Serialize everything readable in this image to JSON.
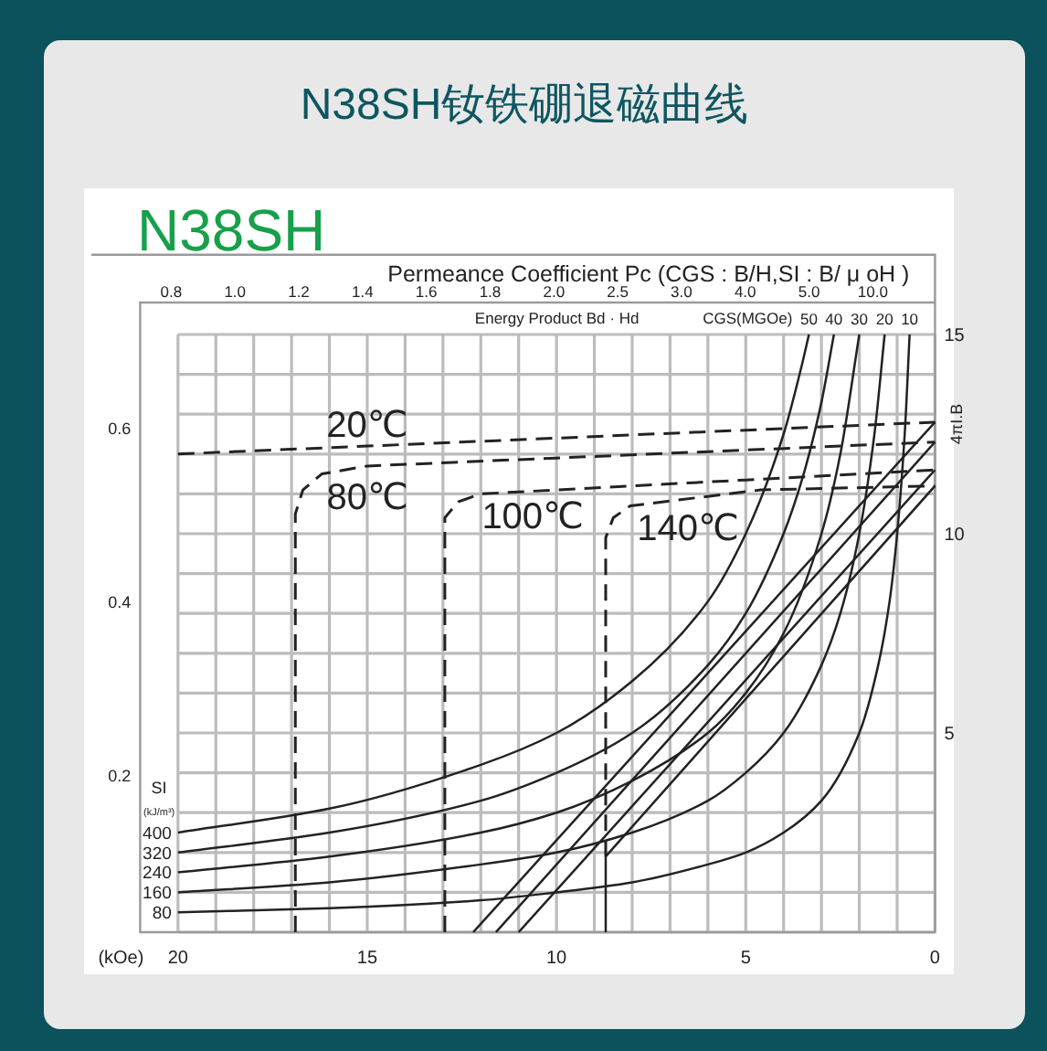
{
  "chart_data": {
    "type": "line",
    "title": "N38SH钕铁硼退磁曲线",
    "subtitle": "N38SH",
    "xlabel": "(kOe)",
    "ylabel": "4πI.B",
    "xlim": [
      21,
      0
    ],
    "xticks": [
      20,
      {
        "value": 19,
        "label": null
      },
      {
        "value": 18,
        "label": null
      },
      {
        "value": 17,
        "label": null
      },
      {
        "value": 16,
        "label": null
      },
      15,
      {
        "value": 14,
        "label": null
      },
      {
        "value": 13,
        "label": null
      },
      {
        "value": 12,
        "label": null
      },
      {
        "value": 11,
        "label": null
      },
      10,
      {
        "value": 9,
        "label": null
      },
      {
        "value": 8,
        "label": null
      },
      {
        "value": 7,
        "label": null
      },
      {
        "value": 6,
        "label": null
      },
      5,
      {
        "value": 4,
        "label": null
      },
      {
        "value": 3,
        "label": null
      },
      {
        "value": 2,
        "label": null
      },
      {
        "value": 1,
        "label": null
      },
      0
    ],
    "ylim": [
      0,
      17.0
    ],
    "yticks": [
      {
        "value": 0,
        "label": null
      },
      {
        "value": 1,
        "label": null
      },
      {
        "value": 2,
        "label": null
      },
      {
        "value": 3,
        "label": null
      },
      {
        "value": 4,
        "label": null
      },
      5,
      {
        "value": 6,
        "label": null
      },
      {
        "value": 7,
        "label": null
      },
      {
        "value": 8,
        "label": null
      },
      {
        "value": 9,
        "label": null
      },
      10,
      {
        "value": 11,
        "label": null
      },
      {
        "value": 12,
        "label": null
      },
      {
        "value": 13,
        "label": null
      },
      {
        "value": 14,
        "label": null
      },
      15
    ],
    "y2lim": [
      0.02,
      0.8
    ],
    "y2ticks": [
      0.2,
      0.4,
      0.6
    ],
    "grid": true,
    "annotations": [
      "Permeance Coefficient Pc (CGS : B/H,SI : B/ μ oH )",
      "Energy Product Bd · Hd",
      "CGS(MGOe)",
      "SI",
      "(kJ/m³)",
      "400",
      "320",
      "240",
      "160",
      "80",
      "0.8",
      "1.0",
      "1.2",
      "1.4",
      "1.6",
      "1.8",
      "2.0",
      "2.5",
      "3.0",
      "4.0",
      "5.0",
      "10.0"
    ],
    "series": [
      {
        "name": "20℃",
        "color": "#222222",
        "line_style": "dashed",
        "x": [
          20,
          15,
          10,
          5,
          0
        ],
        "values": [
          12.0,
          12.2,
          12.4,
          12.6,
          12.8
        ]
      },
      {
        "name": "80℃",
        "color": "#222222",
        "line_style": "dashed",
        "x": [
          16.9,
          16.9,
          16.7,
          16.2,
          15,
          10,
          5,
          0
        ],
        "values": [
          0,
          10.5,
          11.1,
          11.5,
          11.7,
          11.9,
          12.1,
          12.3
        ]
      },
      {
        "name": "100℃",
        "color": "#222222",
        "line_style": "dashed",
        "x": [
          12.95,
          12.95,
          12.6,
          12.0,
          10,
          5,
          0
        ],
        "values": [
          0,
          10.4,
          10.8,
          11.0,
          11.1,
          11.35,
          11.6
        ]
      },
      {
        "name": "140℃",
        "color": "#222222",
        "line_style": "dashed",
        "x": [
          8.7,
          8.7,
          8.5,
          8.05,
          4.6,
          0
        ],
        "values": [
          1.9,
          9.9,
          10.4,
          10.7,
          11.1,
          11.2
        ]
      },
      {
        "color": "#222222",
        "line_style": "solid",
        "x": [
          0,
          12.2
        ],
        "values": [
          12.8,
          0
        ]
      },
      {
        "color": "#222222",
        "line_style": "solid",
        "x": [
          0,
          11.6
        ],
        "values": [
          12.3,
          0
        ]
      },
      {
        "color": "#222222",
        "line_style": "solid",
        "x": [
          0,
          11.0
        ],
        "values": [
          11.6,
          0
        ]
      },
      {
        "color": "#222222",
        "line_style": "solid",
        "x": [
          0,
          8.7,
          8.7
        ],
        "values": [
          11.2,
          1.9,
          0
        ]
      },
      {
        "name": "50",
        "color": "#222222",
        "line_style": "solid",
        "x": [
          20,
          16,
          12,
          10,
          8,
          6,
          5,
          4,
          3.5,
          3.33
        ],
        "values": [
          2.5,
          3.1,
          4.2,
          5.0,
          6.3,
          8.3,
          10.0,
          12.5,
          14.3,
          15.0
        ]
      },
      {
        "name": "40",
        "color": "#222222",
        "line_style": "solid",
        "x": [
          20,
          16,
          12,
          10,
          8,
          6,
          5,
          4,
          3.5,
          3,
          2.67
        ],
        "values": [
          2.0,
          2.5,
          3.3,
          4.0,
          5.0,
          6.7,
          8.0,
          10.0,
          11.4,
          13.3,
          15.0
        ]
      },
      {
        "name": "30",
        "color": "#222222",
        "line_style": "solid",
        "x": [
          20,
          16,
          12,
          10,
          8,
          6,
          5,
          4,
          3,
          2.5,
          2
        ],
        "values": [
          1.5,
          1.9,
          2.5,
          3.0,
          3.8,
          5.0,
          6.0,
          7.5,
          10.0,
          12.0,
          15.0
        ]
      },
      {
        "name": "20",
        "color": "#222222",
        "line_style": "solid",
        "x": [
          20,
          16,
          12,
          10,
          8,
          6,
          5,
          4,
          3,
          2.5,
          2,
          1.6,
          1.33
        ],
        "values": [
          1.0,
          1.25,
          1.7,
          2.0,
          2.5,
          3.3,
          4.0,
          5.0,
          6.7,
          8.0,
          10.0,
          12.5,
          15.0
        ]
      },
      {
        "name": "10",
        "color": "#222222",
        "line_style": "solid",
        "x": [
          20,
          16,
          12,
          10,
          8,
          6,
          5,
          4,
          3,
          2,
          1.5,
          1.2,
          1,
          0.8,
          0.67
        ],
        "values": [
          0.5,
          0.6,
          0.8,
          1.0,
          1.25,
          1.7,
          2.0,
          2.5,
          3.3,
          5.0,
          6.7,
          8.3,
          10.0,
          12.5,
          15.0
        ]
      }
    ]
  }
}
